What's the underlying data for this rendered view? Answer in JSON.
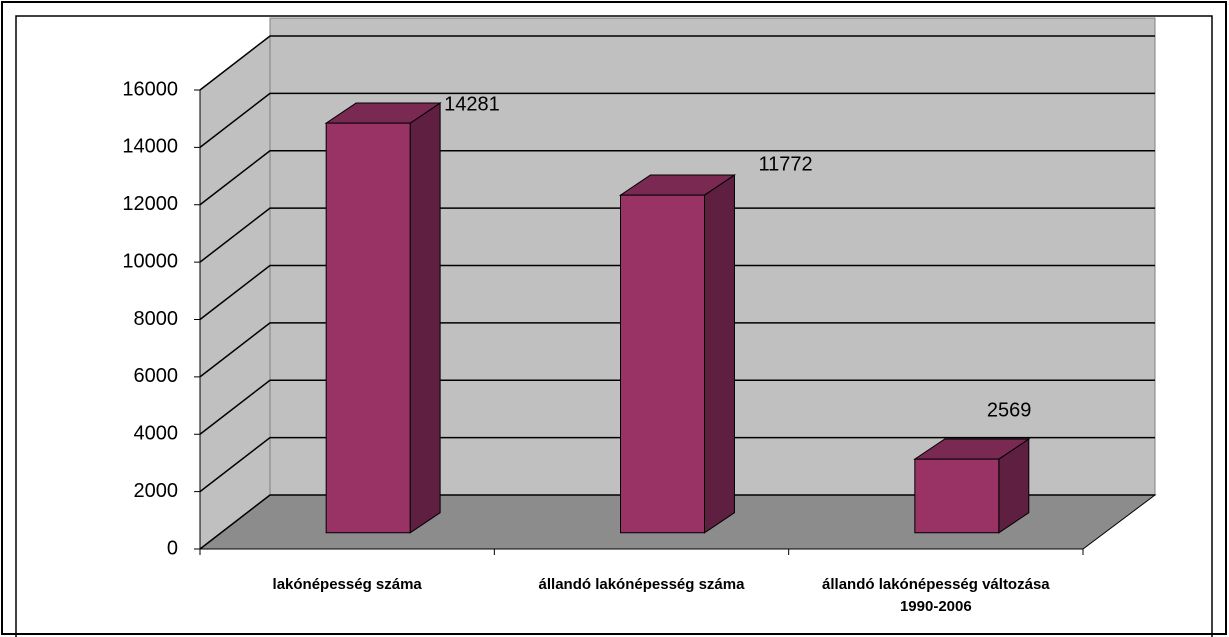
{
  "chart_data": {
    "type": "bar3d",
    "categories": [
      "lakónépesség száma",
      "állandó lakónépesség száma",
      "állandó lakónépesség változása 1990-2006"
    ],
    "values": [
      14281,
      11772,
      2569
    ],
    "color": "#993366",
    "ylim": [
      0,
      16000
    ],
    "yticks": [
      0,
      2000,
      4000,
      6000,
      8000,
      10000,
      12000,
      14000,
      16000
    ],
    "grid": true
  }
}
